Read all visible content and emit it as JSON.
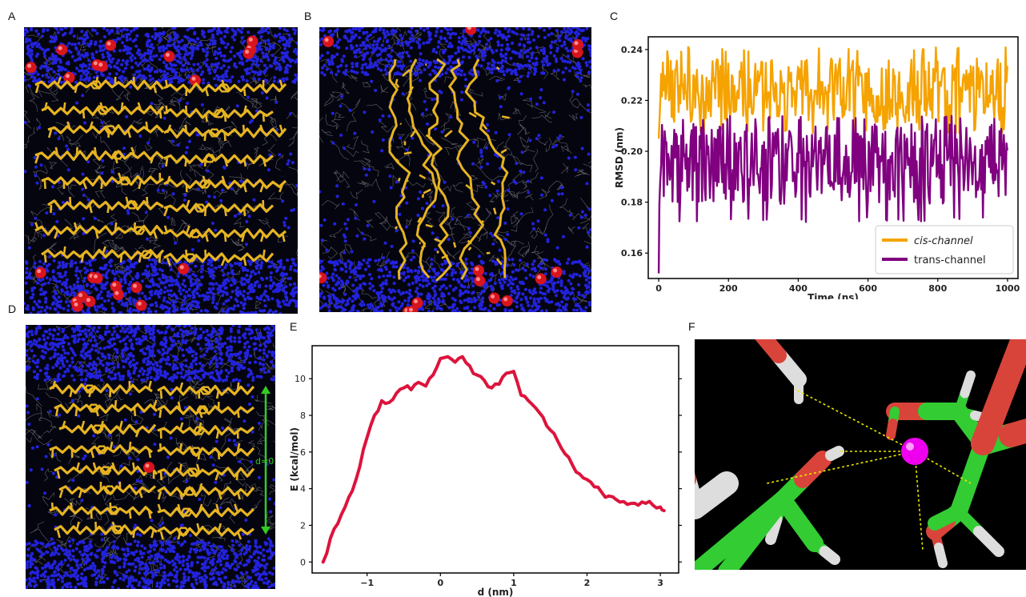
{
  "panels": {
    "A": "A",
    "B": "B",
    "C": "C",
    "D": "D",
    "E": "E",
    "F": "F"
  },
  "panel_d": {
    "annotation": "d=0"
  },
  "colors": {
    "water": "#2222dd",
    "ion": "#d8141c",
    "channel": "#e6b422",
    "lipid": "#8a8a8a",
    "cis": "#f5a300",
    "trans": "#800080",
    "energy": "#dc143c",
    "carbon": "#33cc33",
    "oxygen": "#d9443a",
    "hydrogen": "#dddddd",
    "sodium": "#ee00ee",
    "hbond": "#e8e800",
    "arrow": "#33cc22"
  },
  "chart_data": [
    {
      "id": "C",
      "type": "line",
      "xlabel": "Time (ns)",
      "ylabel": "RMSD (nm)",
      "xlim": [
        -30,
        1030
      ],
      "ylim": [
        0.15,
        0.245
      ],
      "xticks": [
        0,
        200,
        400,
        600,
        800,
        1000
      ],
      "yticks": [
        0.16,
        0.18,
        0.2,
        0.22,
        0.24
      ],
      "ytick_labels": [
        "0.16",
        "0.18",
        "0.20",
        "0.22",
        "0.24"
      ],
      "legend_position": "lower-right",
      "series": [
        {
          "name": "cis-channel",
          "style": "italic",
          "color": "#f5a300",
          "start": 0.205,
          "mean": 0.224,
          "low": 0.207,
          "high": 0.241
        },
        {
          "name": "trans-channel",
          "color": "#800080",
          "start": 0.152,
          "mean": 0.195,
          "low": 0.172,
          "high": 0.214
        }
      ]
    },
    {
      "id": "E",
      "type": "line",
      "xlabel": "d (nm)",
      "ylabel": "E (kcal/mol)",
      "xlim": [
        -1.75,
        3.25
      ],
      "ylim": [
        -0.6,
        11.8
      ],
      "xticks": [
        -1,
        0,
        1,
        2,
        3
      ],
      "xtick_labels": [
        "−1",
        "0",
        "1",
        "2",
        "3"
      ],
      "yticks": [
        0,
        2,
        4,
        6,
        8,
        10
      ],
      "series": [
        {
          "name": "",
          "color": "#dc143c",
          "x": [
            -1.6,
            -1.5,
            -1.4,
            -1.3,
            -1.2,
            -1.1,
            -1.0,
            -0.9,
            -0.8,
            -0.7,
            -0.6,
            -0.5,
            -0.4,
            -0.3,
            -0.2,
            -0.1,
            0.0,
            0.1,
            0.2,
            0.3,
            0.4,
            0.5,
            0.6,
            0.7,
            0.8,
            0.9,
            1.0,
            1.1,
            1.2,
            1.3,
            1.4,
            1.5,
            1.6,
            1.7,
            1.8,
            1.9,
            2.0,
            2.1,
            2.2,
            2.3,
            2.4,
            2.5,
            2.6,
            2.7,
            2.8,
            2.9,
            3.0,
            3.05
          ],
          "y": [
            0.0,
            1.3,
            2.1,
            3.0,
            3.9,
            5.2,
            6.8,
            8.0,
            8.8,
            8.7,
            9.2,
            9.5,
            9.4,
            9.8,
            9.6,
            10.2,
            11.1,
            11.2,
            10.9,
            11.2,
            10.7,
            10.2,
            9.9,
            9.5,
            9.7,
            10.3,
            10.4,
            9.1,
            8.8,
            8.4,
            7.9,
            7.2,
            6.6,
            5.9,
            5.3,
            4.8,
            4.5,
            4.1,
            3.8,
            3.6,
            3.4,
            3.3,
            3.2,
            3.1,
            3.2,
            3.1,
            3.0,
            2.8
          ]
        }
      ]
    }
  ]
}
